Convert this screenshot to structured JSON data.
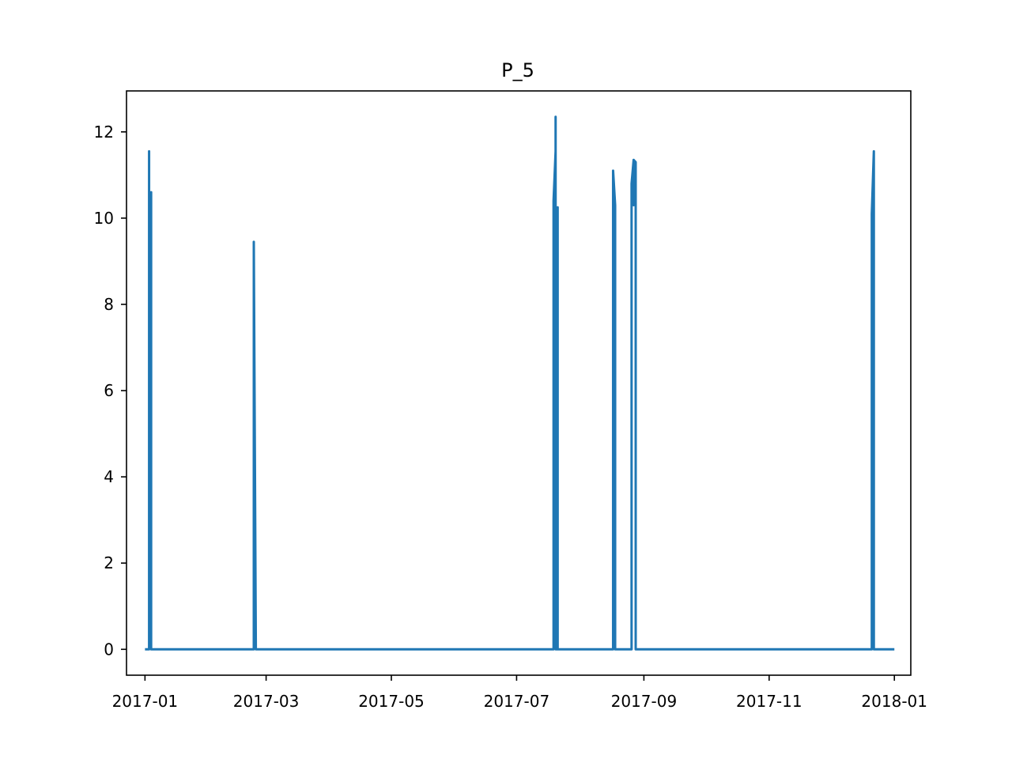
{
  "chart_data": {
    "type": "line",
    "title": "P_5",
    "xlabel": "",
    "ylabel": "",
    "x_axis_type": "date",
    "xlim": [
      "2016-12-23",
      "2018-01-09"
    ],
    "ylim": [
      -0.6,
      12.95
    ],
    "grid": false,
    "legend": "none",
    "colors": {
      "series": "#1f77b4",
      "axes": "#000000",
      "background": "#ffffff"
    },
    "x_ticks": [
      {
        "value": "2017-01-01",
        "label": "2017-01"
      },
      {
        "value": "2017-03-01",
        "label": "2017-03"
      },
      {
        "value": "2017-05-01",
        "label": "2017-05"
      },
      {
        "value": "2017-07-01",
        "label": "2017-07"
      },
      {
        "value": "2017-09-01",
        "label": "2017-09"
      },
      {
        "value": "2017-11-01",
        "label": "2017-11"
      },
      {
        "value": "2018-01-01",
        "label": "2018-01"
      }
    ],
    "y_ticks": [
      {
        "value": 0,
        "label": "0"
      },
      {
        "value": 2,
        "label": "2"
      },
      {
        "value": 4,
        "label": "4"
      },
      {
        "value": 6,
        "label": "6"
      },
      {
        "value": 8,
        "label": "8"
      },
      {
        "value": 10,
        "label": "10"
      },
      {
        "value": 12,
        "label": "12"
      }
    ],
    "series": [
      {
        "x": [
          "2017-01-01",
          "2017-01-03",
          "2017-01-03",
          "2017-01-03",
          "2017-01-04",
          "2017-01-04",
          "2017-02-23",
          "2017-02-23",
          "2017-02-24",
          "2017-07-19",
          "2017-07-19",
          "2017-07-20",
          "2017-07-20",
          "2017-07-20",
          "2017-07-21",
          "2017-07-21",
          "2017-07-21",
          "2017-08-17",
          "2017-08-17",
          "2017-08-18",
          "2017-08-18",
          "2017-08-18",
          "2017-08-26",
          "2017-08-26",
          "2017-08-27",
          "2017-08-27",
          "2017-08-27",
          "2017-08-28",
          "2017-08-28",
          "2017-12-21",
          "2017-12-21",
          "2017-12-22",
          "2017-12-22",
          "2018-01-01"
        ],
        "y": [
          0,
          0,
          11.55,
          7.7,
          10.6,
          0,
          0,
          9.45,
          0,
          0,
          10.4,
          11.55,
          12.35,
          0,
          0,
          10.25,
          0,
          0,
          11.1,
          10.3,
          10.2,
          0,
          0,
          10.8,
          11.35,
          10.3,
          11.35,
          11.3,
          0,
          0,
          10.1,
          11.55,
          0,
          0
        ]
      }
    ]
  }
}
